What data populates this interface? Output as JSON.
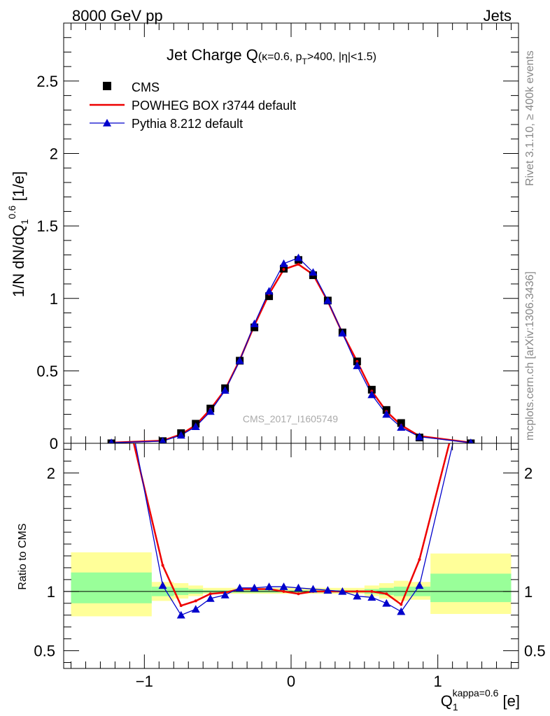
{
  "header": {
    "left": "8000 GeV pp",
    "right": "Jets"
  },
  "side_labels": {
    "rivet": "Rivet 3.1.10, ≥ 400k events",
    "mcplots": "mcplots.cern.ch [arXiv:1306.3436]"
  },
  "watermark": "CMS_2017_I1605749",
  "colors": {
    "data": "#000000",
    "powheg": "#ee0000",
    "pythia": "#0000cc",
    "band_inner": "#99ff99",
    "band_outer": "#ffff99"
  },
  "chart_data": [
    {
      "type": "scatter",
      "title": "Jet Charge Q",
      "title_suffix": "(κ=0.6, p",
      "title_sub": "T",
      "title_suffix2": ">400, |η|<1.5)",
      "ylabel": "1/N dN/dQ",
      "ylabel_sub": "1",
      "ylabel_sup": "0.6",
      "ylabel_unit": " [1/e]",
      "xlim": [
        -1.55,
        1.55
      ],
      "ylim": [
        0,
        2.9
      ],
      "yticks": [
        "0",
        "0.5",
        "1",
        "1.5",
        "2",
        "2.5"
      ],
      "legend_position": "top-left",
      "legend": [
        "CMS",
        "POWHEG BOX r3744 default",
        "Pythia 8.212 default"
      ],
      "x": [
        -1.225,
        -0.875,
        -0.75,
        -0.65,
        -0.55,
        -0.45,
        -0.35,
        -0.25,
        -0.15,
        -0.05,
        0.05,
        0.15,
        0.25,
        0.35,
        0.45,
        0.55,
        0.65,
        0.75,
        0.875,
        1.225
      ],
      "series": [
        {
          "name": "CMS",
          "values": [
            0.0,
            0.015,
            0.07,
            0.135,
            0.24,
            0.38,
            0.57,
            0.8,
            1.015,
            1.205,
            1.265,
            1.16,
            0.985,
            0.765,
            0.565,
            0.37,
            0.23,
            0.14,
            0.04,
            0.0
          ]
        },
        {
          "name": "POWHEG BOX r3744 default",
          "values": [
            0.005,
            0.018,
            0.062,
            0.125,
            0.235,
            0.37,
            0.575,
            0.815,
            1.03,
            1.2,
            1.235,
            1.165,
            0.98,
            0.76,
            0.565,
            0.36,
            0.22,
            0.125,
            0.05,
            0.005
          ]
        },
        {
          "name": "Pythia 8.212 default",
          "values": [
            0.004,
            0.015,
            0.056,
            0.115,
            0.22,
            0.365,
            0.57,
            0.825,
            1.05,
            1.24,
            1.28,
            1.18,
            0.985,
            0.76,
            0.535,
            0.335,
            0.2,
            0.11,
            0.045,
            0.004
          ]
        }
      ]
    },
    {
      "type": "line",
      "ylabel": "Ratio to CMS",
      "xlabel": "Q",
      "xlabel_sub": "1",
      "xlabel_sup": "kappa=0.6",
      "xlabel_unit": " [e]",
      "xlim": [
        -1.55,
        1.55
      ],
      "ylim": [
        0.35,
        2.25
      ],
      "xticks": [
        "−1",
        "0",
        "1"
      ],
      "yticks": [
        "0.5",
        "1",
        "2"
      ],
      "x": [
        -0.875,
        -0.75,
        -0.65,
        -0.55,
        -0.45,
        -0.35,
        -0.25,
        -0.15,
        -0.05,
        0.05,
        0.15,
        0.25,
        0.35,
        0.45,
        0.55,
        0.65,
        0.75,
        0.875
      ],
      "series": [
        {
          "name": "POWHEG BOX r3744 default",
          "values": [
            1.22,
            0.88,
            0.92,
            0.98,
            0.99,
            1.02,
            1.02,
            1.02,
            1.0,
            0.98,
            1.0,
            1.0,
            1.0,
            1.0,
            1.0,
            0.98,
            0.89,
            1.27
          ],
          "left_edge": [
            -1.12,
            2.5
          ],
          "right_edge": [
            1.13,
            2.5
          ]
        },
        {
          "name": "Pythia 8.212 default",
          "values": [
            1.05,
            0.8,
            0.85,
            0.94,
            0.97,
            1.03,
            1.03,
            1.04,
            1.04,
            1.03,
            1.02,
            1.01,
            1.0,
            0.96,
            0.95,
            0.9,
            0.83,
            1.05
          ],
          "left_edge": [
            -1.1,
            2.5
          ],
          "right_edge": [
            1.15,
            2.5
          ]
        }
      ],
      "bands": [
        {
          "x0": -1.5,
          "x1": -0.95,
          "outer": [
            0.79,
            1.33
          ],
          "inner": [
            0.9,
            1.16
          ]
        },
        {
          "x0": -0.95,
          "x1": -0.8,
          "outer": [
            0.92,
            1.08
          ],
          "inner": [
            0.96,
            1.04
          ]
        },
        {
          "x0": -0.8,
          "x1": -0.7,
          "outer": [
            0.94,
            1.07
          ],
          "inner": [
            0.97,
            1.03
          ]
        },
        {
          "x0": -0.7,
          "x1": -0.6,
          "outer": [
            0.96,
            1.05
          ],
          "inner": [
            0.98,
            1.02
          ]
        },
        {
          "x0": -0.6,
          "x1": -0.1,
          "outer": [
            0.98,
            1.03
          ],
          "inner": [
            0.99,
            1.01
          ]
        },
        {
          "x0": -0.1,
          "x1": 0.1,
          "outer": [
            0.98,
            1.03
          ],
          "inner": [
            0.99,
            1.01
          ]
        },
        {
          "x0": 0.1,
          "x1": 0.5,
          "outer": [
            0.98,
            1.03
          ],
          "inner": [
            0.99,
            1.01
          ]
        },
        {
          "x0": 0.5,
          "x1": 0.6,
          "outer": [
            0.96,
            1.05
          ],
          "inner": [
            0.98,
            1.02
          ]
        },
        {
          "x0": 0.6,
          "x1": 0.7,
          "outer": [
            0.94,
            1.07
          ],
          "inner": [
            0.97,
            1.03
          ]
        },
        {
          "x0": 0.7,
          "x1": 0.8,
          "outer": [
            0.92,
            1.09
          ],
          "inner": [
            0.96,
            1.04
          ]
        },
        {
          "x0": 0.8,
          "x1": 0.95,
          "outer": [
            0.93,
            1.08
          ],
          "inner": [
            0.96,
            1.04
          ]
        },
        {
          "x0": 0.95,
          "x1": 1.5,
          "outer": [
            0.81,
            1.32
          ],
          "inner": [
            0.91,
            1.15
          ]
        }
      ]
    }
  ]
}
